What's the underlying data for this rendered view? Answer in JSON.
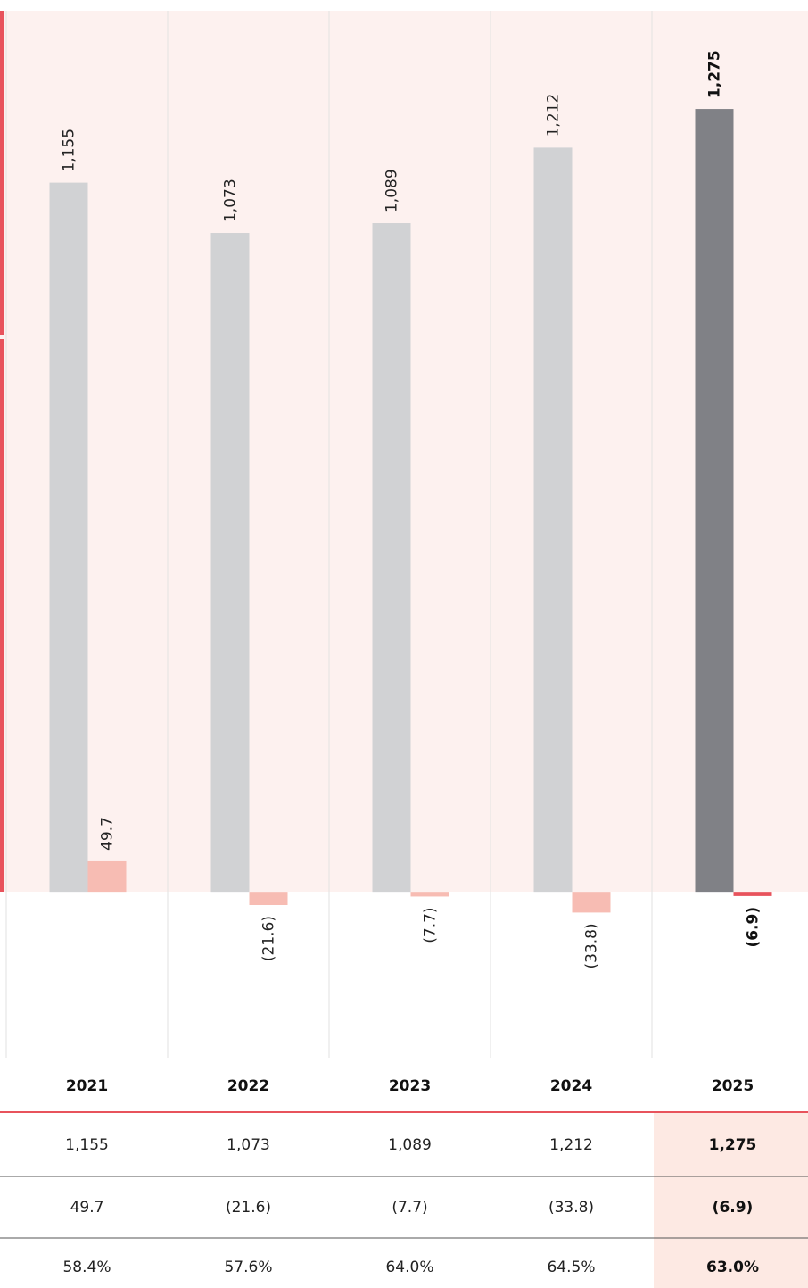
{
  "chart_data": {
    "type": "bar",
    "categories": [
      "2021",
      "2022",
      "2023",
      "2024",
      "2025"
    ],
    "series": [
      {
        "values": [
          1155,
          1073,
          1089,
          1212,
          1275
        ],
        "value_labels": [
          "1,155",
          "1,073",
          "1,089",
          "1,212",
          "1,275"
        ],
        "colors": [
          "#d1d2d4",
          "#d1d2d4",
          "#d1d2d4",
          "#d1d2d4",
          "#808186"
        ]
      },
      {
        "values": [
          49.7,
          -21.6,
          -7.7,
          -33.8,
          -6.9
        ],
        "value_labels": [
          "49.7",
          "(21.6)",
          "(7.7)",
          "(33.8)",
          "(6.9)"
        ],
        "colors": [
          "#f7bcb3",
          "#f7bcb3",
          "#f7bcb3",
          "#f7bcb3",
          "#e8535c"
        ]
      }
    ],
    "ylim": [
      -260,
      1435
    ]
  },
  "table": {
    "rows": [
      [
        "1,155",
        "1,073",
        "1,089",
        "1,212",
        "1,275"
      ],
      [
        "49.7",
        "(21.6)",
        "(7.7)",
        "(33.8)",
        "(6.9)"
      ],
      [
        "58.4%",
        "57.6%",
        "64.0%",
        "64.5%",
        "63.0%"
      ]
    ]
  }
}
